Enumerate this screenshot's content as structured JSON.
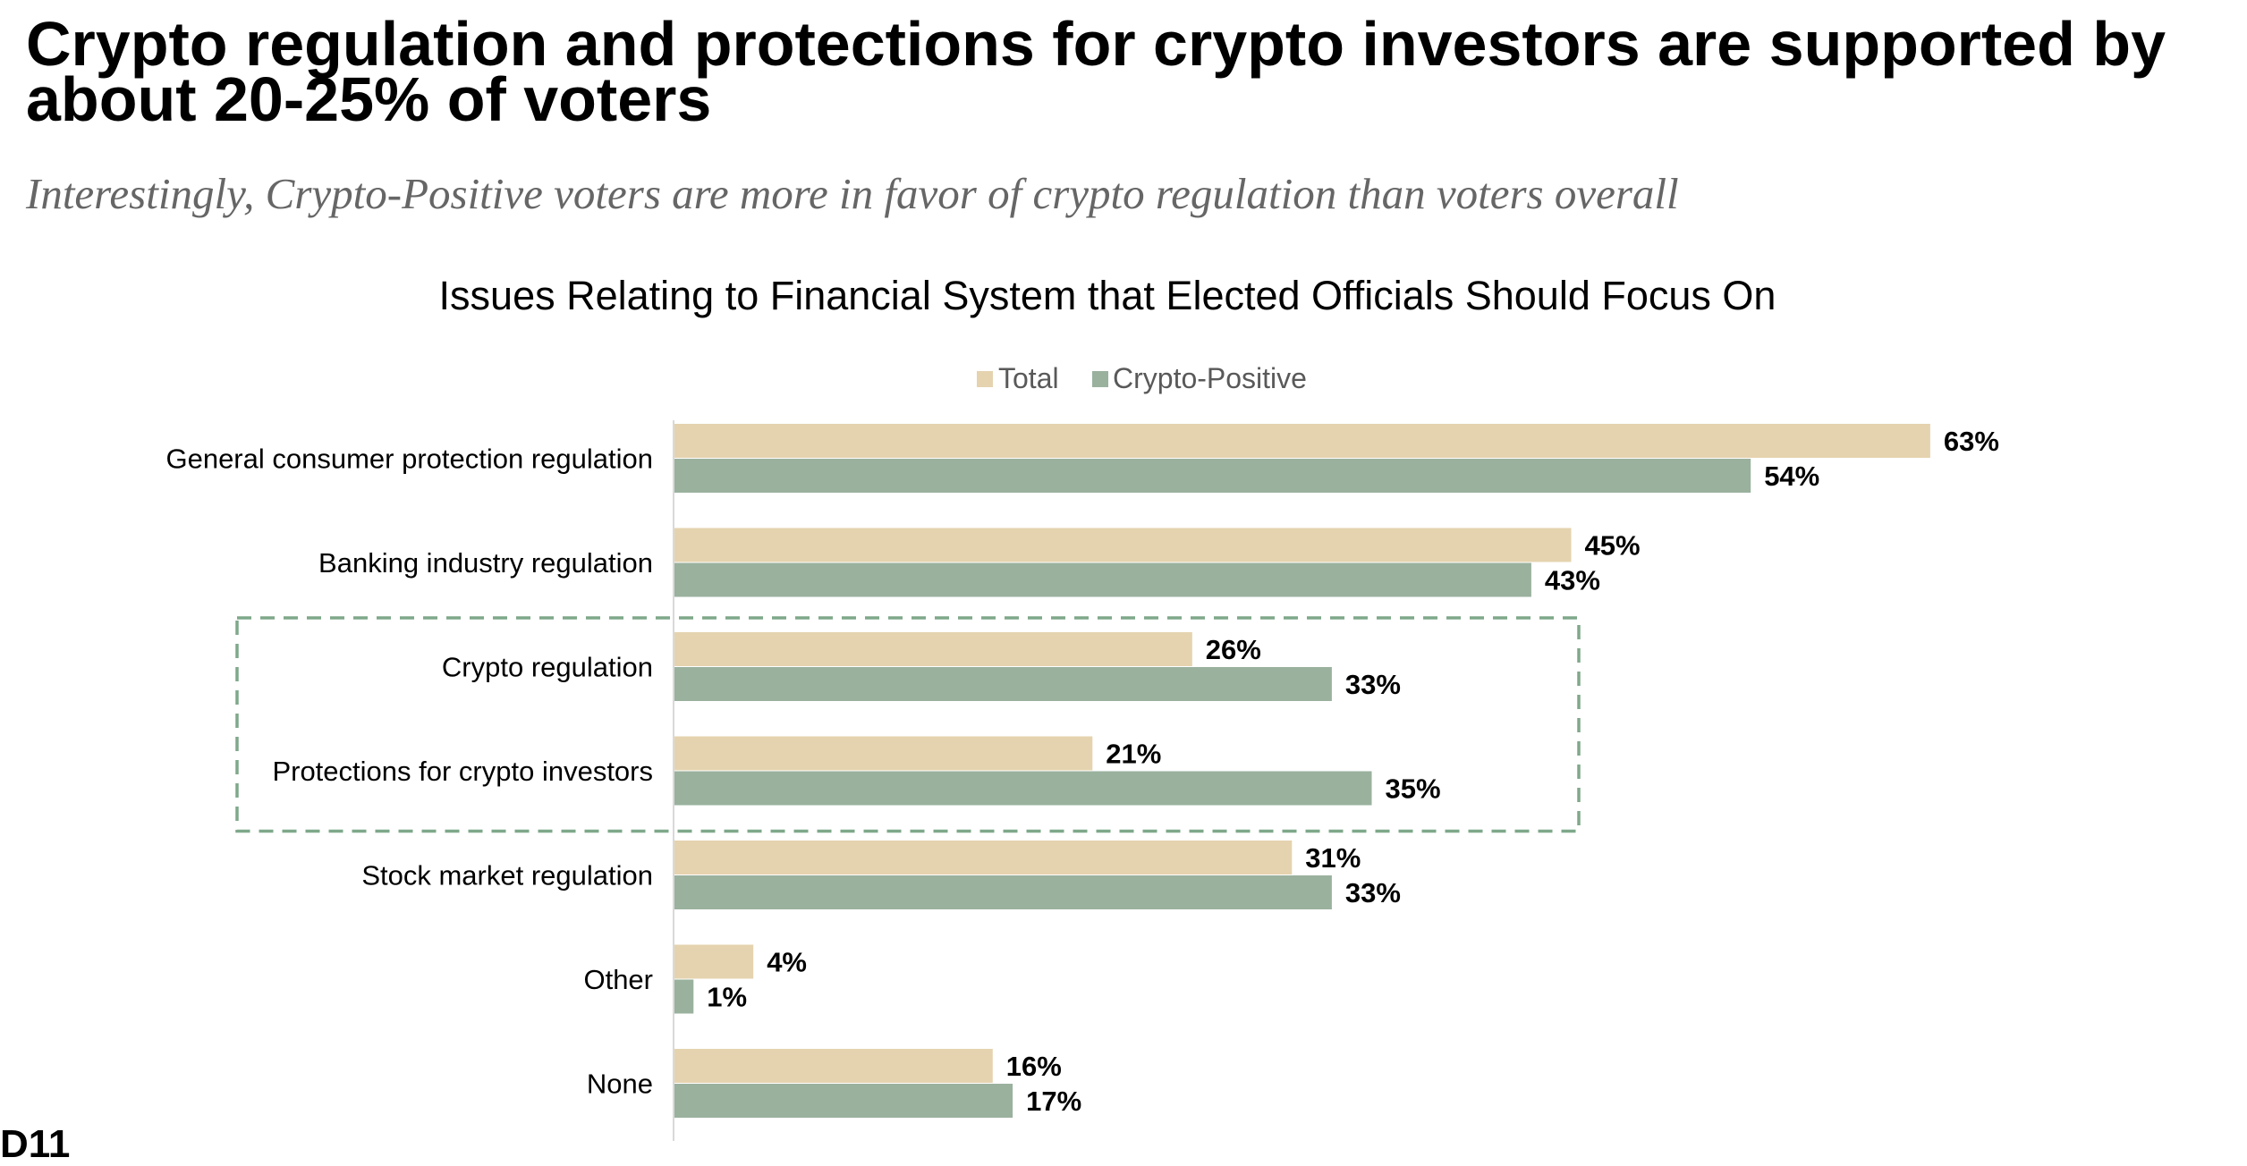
{
  "page": {
    "title": "Crypto regulation and protections for crypto investors are supported by about 20-25% of voters",
    "subtitle": "Interestingly, Crypto-Positive voters are more in favor of crypto regulation than voters overall",
    "page_number": "D11"
  },
  "colors": {
    "total": "#E5D3AF",
    "crypto_positive": "#9AB19E",
    "highlight_box": "#7FA88A",
    "axis": "#D9D9D9"
  },
  "chart_data": {
    "type": "bar",
    "orientation": "horizontal",
    "title": "Issues Relating to Financial System that Elected Officials Should Focus On",
    "categories": [
      "General consumer protection regulation",
      "Banking industry regulation",
      "Crypto regulation",
      "Protections for crypto investors",
      "Stock market regulation",
      "Other",
      "None"
    ],
    "series": [
      {
        "name": "Total",
        "values": [
          63,
          45,
          26,
          21,
          31,
          4,
          16
        ],
        "labels": [
          "63%",
          "45%",
          "26%",
          "21%",
          "31%",
          "4%",
          "16%"
        ]
      },
      {
        "name": "Crypto-Positive",
        "values": [
          54,
          43,
          33,
          35,
          33,
          1,
          17
        ],
        "labels": [
          "54%",
          "43%",
          "33%",
          "35%",
          "33%",
          "1%",
          "17%"
        ]
      }
    ],
    "value_unit": "%",
    "xlim": [
      0,
      70
    ],
    "grid": false,
    "legend": "top-center",
    "highlighted_categories": [
      "Crypto regulation",
      "Protections for crypto investors"
    ]
  }
}
